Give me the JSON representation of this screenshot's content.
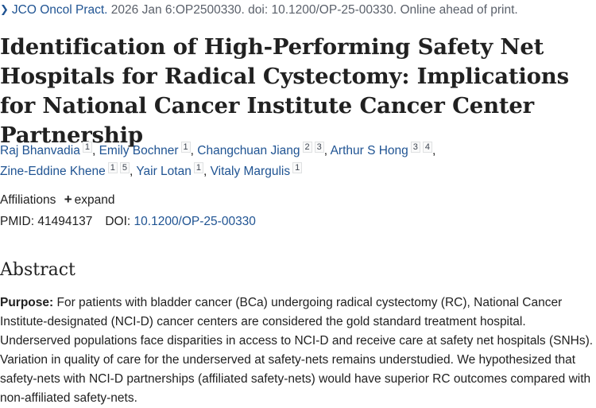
{
  "citation": {
    "journal": "JCO Oncol Pract.",
    "details": " 2026 Jan 6:OP2500330. doi: 10.1200/OP-25-00330. Online ahead of print."
  },
  "title": "Identification of High-Performing Safety Net Hospitals for Radical Cystectomy: Implications for National Cancer Institute Cancer Center Partnership",
  "authors": [
    {
      "name": "Raj Bhanvadia",
      "affils": [
        "1"
      ]
    },
    {
      "name": "Emily Bochner",
      "affils": [
        "1"
      ]
    },
    {
      "name": "Changchuan Jiang",
      "affils": [
        "2",
        "3"
      ]
    },
    {
      "name": "Arthur S Hong",
      "affils": [
        "3",
        "4"
      ]
    },
    {
      "name": "Zine-Eddine Khene",
      "affils": [
        "1",
        "5"
      ]
    },
    {
      "name": "Yair Lotan",
      "affils": [
        "1"
      ]
    },
    {
      "name": "Vitaly Margulis",
      "affils": [
        "1"
      ]
    }
  ],
  "affiliations": {
    "label": "Affiliations",
    "expand_icon": "plus-icon",
    "expand_label": "expand"
  },
  "ids": {
    "pmid_label": "PMID:",
    "pmid": "41494137",
    "doi_label": "DOI:",
    "doi": "10.1200/OP-25-00330"
  },
  "abstract": {
    "heading": "Abstract",
    "purpose_label": "Purpose:",
    "purpose_text": "For patients with bladder cancer (BCa) undergoing radical cystectomy (RC), National Cancer Institute-designated (NCI-D) cancer centers are considered the gold standard treatment hospital. Underserved populations face disparities in access to NCI-D and receive care at safety net hospitals (SNHs). Variation in quality of care for the underserved at safety-nets remains understudied. We hypothesized that safety-nets with NCI-D partnerships (affiliated safety-nets) would have superior RC outcomes compared with non-affiliated safety-nets."
  },
  "colors": {
    "link": "#205493",
    "text": "#212121",
    "muted": "#5b616b"
  }
}
